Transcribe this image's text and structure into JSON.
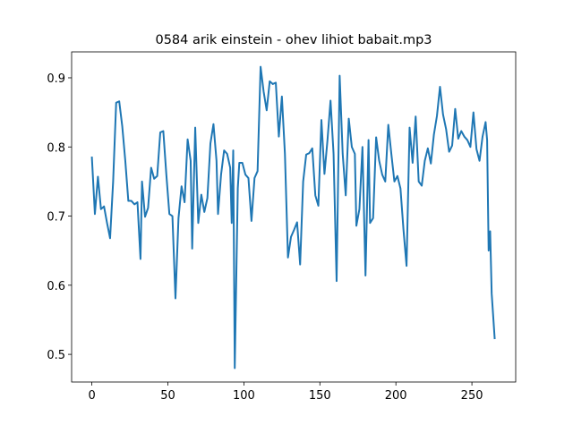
{
  "chart_data": {
    "type": "line",
    "title": "0584 arik einstein - ohev lihiot babait.mp3",
    "x": [
      0,
      2,
      4,
      6,
      8,
      10,
      12,
      14,
      16,
      18,
      20,
      22,
      24,
      26,
      28,
      30,
      32,
      33,
      35,
      37,
      39,
      41,
      43,
      45,
      47,
      49,
      51,
      53,
      55,
      57,
      59,
      61,
      63,
      65,
      66,
      68,
      70,
      72,
      74,
      76,
      78,
      80,
      82,
      83,
      85,
      87,
      89,
      91,
      92,
      93,
      94,
      96,
      97,
      99,
      101,
      103,
      105,
      107,
      109,
      111,
      113,
      115,
      117,
      119,
      121,
      123,
      125,
      127,
      129,
      131,
      133,
      135,
      137,
      139,
      141,
      143,
      145,
      147,
      149,
      151,
      153,
      155,
      157,
      159,
      161,
      163,
      165,
      167,
      169,
      171,
      173,
      174,
      176,
      178,
      180,
      182,
      183,
      185,
      187,
      189,
      191,
      193,
      195,
      197,
      199,
      201,
      203,
      205,
      207,
      209,
      211,
      213,
      215,
      217,
      219,
      221,
      223,
      225,
      227,
      229,
      231,
      233,
      235,
      237,
      239,
      241,
      243,
      245,
      247,
      249,
      251,
      253,
      255,
      257,
      259,
      260,
      261,
      262,
      263,
      265
    ],
    "series": [
      {
        "name": "series",
        "color": "#1f77b4",
        "values": [
          0.786,
          0.703,
          0.757,
          0.71,
          0.714,
          0.69,
          0.668,
          0.75,
          0.864,
          0.866,
          0.83,
          0.78,
          0.722,
          0.722,
          0.717,
          0.72,
          0.638,
          0.75,
          0.699,
          0.712,
          0.77,
          0.754,
          0.758,
          0.821,
          0.823,
          0.76,
          0.703,
          0.7,
          0.581,
          0.697,
          0.743,
          0.72,
          0.811,
          0.78,
          0.653,
          0.828,
          0.69,
          0.731,
          0.706,
          0.726,
          0.805,
          0.833,
          0.78,
          0.703,
          0.76,
          0.795,
          0.79,
          0.77,
          0.69,
          0.795,
          0.48,
          0.74,
          0.777,
          0.777,
          0.76,
          0.755,
          0.693,
          0.755,
          0.765,
          0.916,
          0.88,
          0.853,
          0.895,
          0.891,
          0.893,
          0.815,
          0.873,
          0.79,
          0.64,
          0.67,
          0.68,
          0.691,
          0.63,
          0.75,
          0.789,
          0.791,
          0.798,
          0.73,
          0.715,
          0.839,
          0.761,
          0.81,
          0.867,
          0.79,
          0.606,
          0.903,
          0.79,
          0.73,
          0.841,
          0.8,
          0.79,
          0.686,
          0.71,
          0.8,
          0.614,
          0.81,
          0.69,
          0.697,
          0.814,
          0.78,
          0.76,
          0.75,
          0.832,
          0.79,
          0.75,
          0.758,
          0.74,
          0.68,
          0.628,
          0.828,
          0.777,
          0.844,
          0.75,
          0.744,
          0.78,
          0.798,
          0.776,
          0.818,
          0.845,
          0.887,
          0.847,
          0.826,
          0.793,
          0.802,
          0.855,
          0.812,
          0.823,
          0.815,
          0.81,
          0.8,
          0.85,
          0.797,
          0.78,
          0.815,
          0.836,
          0.81,
          0.65,
          0.678,
          0.588,
          0.522
        ]
      }
    ],
    "xlim": [
      -13.3,
      278.8
    ],
    "ylim": [
      0.46,
      0.9375
    ],
    "xticks": [
      0,
      50,
      100,
      150,
      200,
      250
    ],
    "yticks": [
      0.5,
      0.6,
      0.7,
      0.8,
      0.9
    ]
  }
}
